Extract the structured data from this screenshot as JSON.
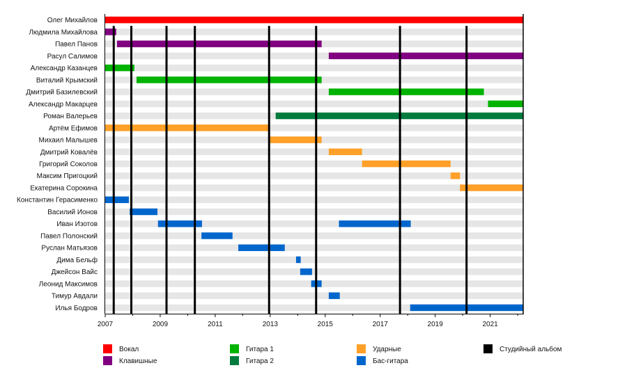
{
  "chart_data": {
    "type": "timeline",
    "title": "",
    "xlabel": "",
    "ylabel": "",
    "xlim": [
      2007.0,
      2022.2
    ],
    "x_major_ticks": [
      2007,
      2009,
      2011,
      2013,
      2015,
      2017,
      2019,
      2021
    ],
    "x_minor_ticks": [
      2008,
      2010,
      2012,
      2014,
      2016,
      2018,
      2020,
      2022
    ],
    "roles": {
      "vocals": {
        "label": "Вокал",
        "color": "#FF0000"
      },
      "keys": {
        "label": "Клавишные",
        "color": "#800080"
      },
      "guitar1": {
        "label": "Гитара 1",
        "color": "#00B300"
      },
      "guitar2": {
        "label": "Гитара 2",
        "color": "#007A3D"
      },
      "drums": {
        "label": "Ударные",
        "color": "#FFA028"
      },
      "bass": {
        "label": "Бас-гитара",
        "color": "#0066CC"
      },
      "album": {
        "label": "Студийный альбом",
        "color": "#000000"
      }
    },
    "legend": [
      {
        "key": "vocals",
        "label": "Вокал",
        "color": "#FF0000"
      },
      {
        "key": "keys",
        "label": "Клавишные",
        "color": "#800080"
      },
      {
        "key": "guitar1",
        "label": "Гитара 1",
        "color": "#00B300"
      },
      {
        "key": "guitar2",
        "label": "Гитара 2",
        "color": "#007A3D"
      },
      {
        "key": "drums",
        "label": "Ударные",
        "color": "#FFA028"
      },
      {
        "key": "bass",
        "label": "Бас-гитара",
        "color": "#0066CC"
      },
      {
        "key": "album",
        "label": "Студийный альбом",
        "color": "#000000"
      }
    ],
    "legend_position": "bottom",
    "albums": [
      2007.31,
      2007.95,
      2009.23,
      2010.26,
      2012.96,
      2014.67,
      2017.72,
      2020.14
    ],
    "members": [
      {
        "name": "Олег Михайлов",
        "periods": [
          {
            "role": "vocals",
            "start": 2007.0,
            "end": 2022.2
          }
        ]
      },
      {
        "name": "Людмила Михайлова",
        "periods": [
          {
            "role": "keys",
            "start": 2007.0,
            "end": 2007.4
          }
        ]
      },
      {
        "name": "Павел Панов",
        "periods": [
          {
            "role": "keys",
            "start": 2007.43,
            "end": 2014.87
          }
        ]
      },
      {
        "name": "Расул Салимов",
        "periods": [
          {
            "role": "keys",
            "start": 2015.13,
            "end": 2022.2
          }
        ]
      },
      {
        "name": "Александр Казанцев",
        "periods": [
          {
            "role": "guitar1",
            "start": 2007.0,
            "end": 2008.06
          }
        ]
      },
      {
        "name": "Виталий Крымский",
        "periods": [
          {
            "role": "guitar1",
            "start": 2008.14,
            "end": 2014.87
          }
        ]
      },
      {
        "name": "Дмитрий Базилевский",
        "periods": [
          {
            "role": "guitar1",
            "start": 2015.13,
            "end": 2020.77
          }
        ]
      },
      {
        "name": "Александр Макарцев",
        "periods": [
          {
            "role": "guitar1",
            "start": 2020.92,
            "end": 2022.2
          }
        ]
      },
      {
        "name": "Роман Валерьев",
        "periods": [
          {
            "role": "guitar2",
            "start": 2013.2,
            "end": 2022.2
          }
        ]
      },
      {
        "name": "Артём Ефимов",
        "periods": [
          {
            "role": "drums",
            "start": 2007.0,
            "end": 2012.95
          }
        ]
      },
      {
        "name": "Михаил Малышев",
        "periods": [
          {
            "role": "drums",
            "start": 2012.95,
            "end": 2014.87
          }
        ]
      },
      {
        "name": "Дмитрий Ковалёв",
        "periods": [
          {
            "role": "drums",
            "start": 2015.13,
            "end": 2016.34
          }
        ]
      },
      {
        "name": "Григорий Соколов",
        "periods": [
          {
            "role": "drums",
            "start": 2016.34,
            "end": 2019.56
          }
        ]
      },
      {
        "name": "Максим Пригоцкий",
        "periods": [
          {
            "role": "drums",
            "start": 2019.56,
            "end": 2019.9
          }
        ]
      },
      {
        "name": "Екатерина Сорокина",
        "periods": [
          {
            "role": "drums",
            "start": 2019.9,
            "end": 2022.2
          }
        ]
      },
      {
        "name": "Константин Герасименко",
        "periods": [
          {
            "role": "bass",
            "start": 2007.0,
            "end": 2007.86
          }
        ]
      },
      {
        "name": "Василий Ионов",
        "periods": [
          {
            "role": "bass",
            "start": 2007.89,
            "end": 2008.9
          }
        ]
      },
      {
        "name": "Иван Изотов",
        "periods": [
          {
            "role": "bass",
            "start": 2008.92,
            "end": 2010.52
          },
          {
            "role": "bass",
            "start": 2015.5,
            "end": 2018.11
          }
        ]
      },
      {
        "name": "Павел Полонский",
        "periods": [
          {
            "role": "bass",
            "start": 2010.5,
            "end": 2011.63
          }
        ]
      },
      {
        "name": "Руслан Матьязов",
        "periods": [
          {
            "role": "bass",
            "start": 2011.84,
            "end": 2013.53
          }
        ]
      },
      {
        "name": "Дима Бельф",
        "periods": [
          {
            "role": "bass",
            "start": 2013.94,
            "end": 2014.11
          }
        ]
      },
      {
        "name": "Джейсон Вайс",
        "periods": [
          {
            "role": "bass",
            "start": 2014.09,
            "end": 2014.52
          }
        ]
      },
      {
        "name": "Леонид Максимов",
        "periods": [
          {
            "role": "bass",
            "start": 2014.49,
            "end": 2014.87
          }
        ]
      },
      {
        "name": "Тимур Авдали",
        "periods": [
          {
            "role": "bass",
            "start": 2015.13,
            "end": 2015.53
          }
        ]
      },
      {
        "name": "Илья Бодров",
        "periods": [
          {
            "role": "bass",
            "start": 2018.09,
            "end": 2022.2
          }
        ]
      }
    ]
  }
}
